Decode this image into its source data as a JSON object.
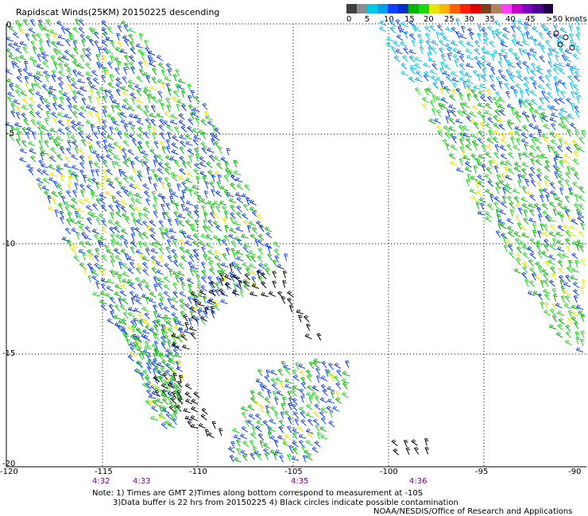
{
  "title": "Rapidscat Winds(25KM) 20150225 descending",
  "legend": {
    "colors": [
      "#404040",
      "#8c8c8c",
      "#00c8e6",
      "#00a0f0",
      "#1040ff",
      "#0030c8",
      "#00b400",
      "#18d818",
      "#e6e600",
      "#ffb400",
      "#ff6000",
      "#ff2000",
      "#e00000",
      "#7c4020",
      "#b08060",
      "#ff40ff",
      "#c800c8",
      "#8000c0",
      "#500090",
      "#20004c"
    ],
    "labels": [
      "0",
      "5",
      "10",
      "15",
      "20",
      "25",
      "30",
      "35",
      "40",
      "45",
      ">50 knots"
    ]
  },
  "axes": {
    "y_labels": [
      "0",
      "-5",
      "-10",
      "-15",
      "-20"
    ],
    "x_labels": [
      "-120",
      "-115",
      "-110",
      "-105",
      "-100",
      "-95",
      "-90"
    ]
  },
  "times": [
    "4:32",
    "4:33",
    "4:35",
    "4:36"
  ],
  "notes": {
    "line1": "Note: 1) Times are GMT 2)Times along bottom correspond to measurement at -10S",
    "line2": "3)Data buffer is 22 hrs from 20150225 4) Black circles indicate possible contamination",
    "line3": "NOAA/NESDIS/Office of Research and Applications"
  }
}
